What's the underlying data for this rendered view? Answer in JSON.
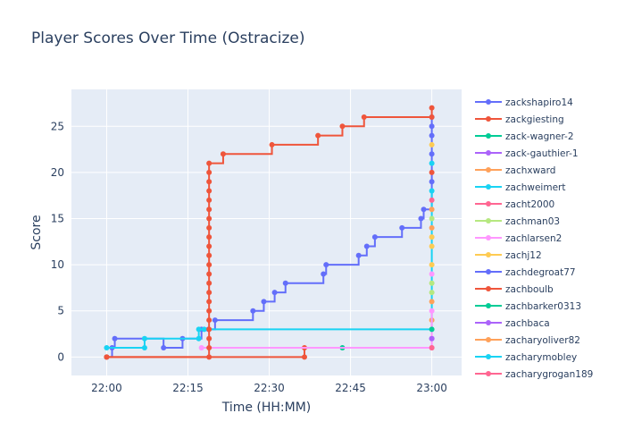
{
  "chart_data": {
    "type": "line",
    "title": "Player Scores Over Time (Ostracize)",
    "xlabel": "Time (HH:MM)",
    "ylabel": "Score",
    "x_tick_labels": [
      "22:00",
      "22:15",
      "22:30",
      "22:45",
      "23:00"
    ],
    "x_tick_minutes": [
      0,
      15,
      30,
      45,
      60
    ],
    "xlim_minutes": [
      -6.5,
      65.5
    ],
    "y_ticks": [
      0,
      5,
      10,
      15,
      20,
      25
    ],
    "ylim": [
      -2,
      29
    ],
    "grid": true,
    "legend_position": "right",
    "line_shape": "step",
    "series": [
      {
        "name": "zackshapiro14",
        "color": "#636efa",
        "points": [
          [
            0,
            0
          ],
          [
            1,
            1
          ],
          [
            1.5,
            2
          ],
          [
            10.5,
            1
          ],
          [
            14,
            2
          ],
          [
            17.5,
            3
          ],
          [
            18.8,
            3
          ],
          [
            20,
            4
          ],
          [
            27,
            5
          ],
          [
            29,
            6
          ],
          [
            31,
            7
          ],
          [
            33,
            8
          ],
          [
            40,
            9
          ],
          [
            40.5,
            10
          ],
          [
            46.5,
            11
          ],
          [
            48,
            12
          ],
          [
            49.5,
            13
          ],
          [
            54.5,
            14
          ],
          [
            58,
            15
          ],
          [
            58.5,
            16
          ],
          [
            60,
            19
          ],
          [
            60,
            22
          ],
          [
            60,
            25
          ],
          [
            60,
            26
          ]
        ]
      },
      {
        "name": "zackgiesting",
        "color": "#ef553b",
        "points": [
          [
            0,
            0
          ],
          [
            36.5,
            0
          ],
          [
            36.5,
            1
          ]
        ]
      },
      {
        "name": "zack-wagner-2",
        "color": "#00cc96",
        "points": [
          [
            43.5,
            1
          ]
        ]
      },
      {
        "name": "zack-gauthier-1",
        "color": "#ab63fa",
        "points": [
          [
            60,
            2
          ]
        ]
      },
      {
        "name": "zachxward",
        "color": "#ffa15a",
        "points": [
          [
            60,
            4
          ]
        ]
      },
      {
        "name": "zachweimert",
        "color": "#19d3f3",
        "points": [
          [
            0,
            1
          ],
          [
            7,
            1
          ],
          [
            7,
            2
          ],
          [
            17,
            2
          ],
          [
            17,
            3
          ],
          [
            18,
            3
          ],
          [
            60,
            18
          ]
        ]
      },
      {
        "name": "zacht2000",
        "color": "#ff6692",
        "points": [
          [
            60,
            1
          ]
        ]
      },
      {
        "name": "zachman03",
        "color": "#b6e880",
        "points": [
          [
            60,
            7
          ]
        ]
      },
      {
        "name": "zachlarsen2",
        "color": "#ff97ff",
        "points": [
          [
            17.5,
            1
          ],
          [
            60,
            5
          ]
        ]
      },
      {
        "name": "zachj12",
        "color": "#fecb52",
        "points": [
          [
            60,
            12
          ]
        ]
      },
      {
        "name": "zachdegroat77",
        "color": "#636efa",
        "points": [
          [
            60,
            24
          ]
        ]
      },
      {
        "name": "zachboulb",
        "color": "#ef553b",
        "points": [
          [
            0,
            0
          ],
          [
            18.9,
            0
          ],
          [
            18.9,
            1
          ],
          [
            18.9,
            2
          ],
          [
            18.9,
            3
          ],
          [
            18.9,
            4
          ],
          [
            18.9,
            5
          ],
          [
            18.9,
            6
          ],
          [
            18.9,
            7
          ],
          [
            18.9,
            8
          ],
          [
            18.9,
            9
          ],
          [
            18.9,
            10
          ],
          [
            18.9,
            11
          ],
          [
            18.9,
            12
          ],
          [
            18.9,
            13
          ],
          [
            18.9,
            14
          ],
          [
            18.9,
            15
          ],
          [
            18.9,
            16
          ],
          [
            18.9,
            17
          ],
          [
            18.9,
            18
          ],
          [
            18.9,
            19
          ],
          [
            18.9,
            20
          ],
          [
            18.9,
            21
          ],
          [
            21.5,
            22
          ],
          [
            30.5,
            23
          ],
          [
            39,
            24
          ],
          [
            43.5,
            25
          ],
          [
            47.5,
            26
          ],
          [
            60,
            26
          ],
          [
            60,
            27
          ]
        ]
      },
      {
        "name": "zachbarker0313",
        "color": "#00cc96",
        "points": [
          [
            60,
            3
          ]
        ]
      },
      {
        "name": "zachbaca",
        "color": "#ab63fa",
        "points": [
          [
            60,
            2
          ]
        ]
      },
      {
        "name": "zacharyoliver82",
        "color": "#ffa15a",
        "points": [
          [
            60,
            6
          ]
        ]
      },
      {
        "name": "zacharymobley",
        "color": "#19d3f3",
        "points": [
          [
            60,
            21
          ]
        ]
      },
      {
        "name": "zacharygrogan189",
        "color": "#ff6692",
        "points": [
          [
            60,
            1
          ]
        ]
      },
      {
        "name": "",
        "color": "#b6e880",
        "points": [
          [
            60,
            8
          ]
        ]
      },
      {
        "name": "",
        "color": "#ff97ff",
        "points": [
          [
            60,
            9
          ]
        ]
      },
      {
        "name": "",
        "color": "#fecb52",
        "points": [
          [
            60,
            10
          ]
        ]
      },
      {
        "name": "",
        "color": "#fecb52",
        "points": [
          [
            60,
            13
          ]
        ]
      },
      {
        "name": "",
        "color": "#ffa15a",
        "points": [
          [
            60,
            14
          ]
        ]
      },
      {
        "name": "",
        "color": "#b6e880",
        "points": [
          [
            60,
            15
          ]
        ]
      },
      {
        "name": "",
        "color": "#ffa15a",
        "points": [
          [
            60,
            16
          ]
        ]
      },
      {
        "name": "",
        "color": "#ff6692",
        "points": [
          [
            60,
            17
          ]
        ]
      },
      {
        "name": "",
        "color": "#ef553b",
        "points": [
          [
            60,
            20
          ]
        ]
      },
      {
        "name": "",
        "color": "#fecb52",
        "points": [
          [
            60,
            23
          ]
        ]
      }
    ]
  }
}
